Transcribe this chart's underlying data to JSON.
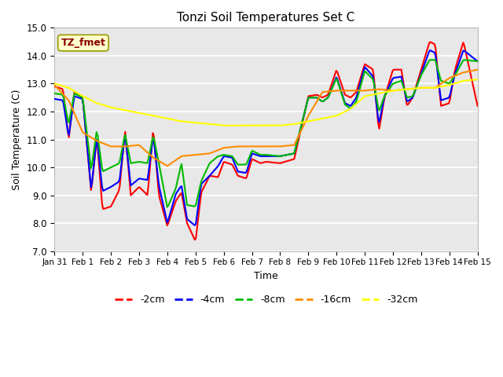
{
  "title": "Tonzi Soil Temperatures Set C",
  "xlabel": "Time",
  "ylabel": "Soil Temperature (C)",
  "annotation": "TZ_fmet",
  "annotation_color": "#8B0000",
  "annotation_bg": "#FFFFCC",
  "annotation_border": "#999900",
  "ylim": [
    7.0,
    15.0
  ],
  "yticks": [
    7.0,
    8.0,
    9.0,
    10.0,
    11.0,
    12.0,
    13.0,
    14.0,
    15.0
  ],
  "xtick_labels": [
    "Jan 31",
    "Feb 1",
    "Feb 2",
    "Feb 3",
    "Feb 4",
    "Feb 5",
    "Feb 6",
    "Feb 7",
    "Feb 8",
    "Feb 9",
    "Feb 10",
    "Feb 11",
    "Feb 12",
    "Feb 13",
    "Feb 14",
    "Feb 15"
  ],
  "fig_bg": "#FFFFFF",
  "plot_bg": "#E8E8E8",
  "grid_color": "#FFFFFF",
  "line_colors": {
    "-2cm": "#FF0000",
    "-4cm": "#0000FF",
    "-8cm": "#00BB00",
    "-16cm": "#FF8C00",
    "-32cm": "#FFFF00"
  },
  "line_width": 1.5,
  "legend_labels": [
    "-2cm",
    "-4cm",
    "-8cm",
    "-16cm",
    "-32cm"
  ]
}
